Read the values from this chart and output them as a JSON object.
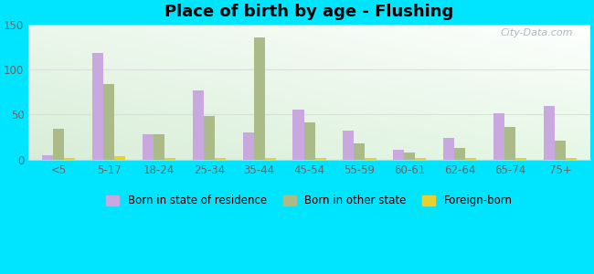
{
  "title": "Place of birth by age - Flushing",
  "categories": [
    "<5",
    "5-17",
    "18-24",
    "25-34",
    "35-44",
    "45-54",
    "55-59",
    "60-61",
    "62-64",
    "65-74",
    "75+"
  ],
  "born_in_state": [
    5,
    118,
    28,
    77,
    30,
    55,
    32,
    11,
    24,
    51,
    59
  ],
  "born_other_state": [
    34,
    84,
    28,
    48,
    135,
    41,
    18,
    8,
    13,
    36,
    21
  ],
  "foreign_born": [
    2,
    4,
    2,
    2,
    2,
    2,
    2,
    2,
    2,
    2,
    2
  ],
  "color_state": "#c8a8df",
  "color_other": "#aabb88",
  "color_foreign": "#e8d030",
  "ylim": [
    0,
    150
  ],
  "yticks": [
    0,
    50,
    100,
    150
  ],
  "outer_bg": "#00e5ff",
  "legend_labels": [
    "Born in state of residence",
    "Born in other state",
    "Foreign-born"
  ],
  "bar_width": 0.22,
  "tick_color": "#666666",
  "grid_color": "#dddddd",
  "title_fontsize": 13,
  "tick_fontsize": 8.5
}
